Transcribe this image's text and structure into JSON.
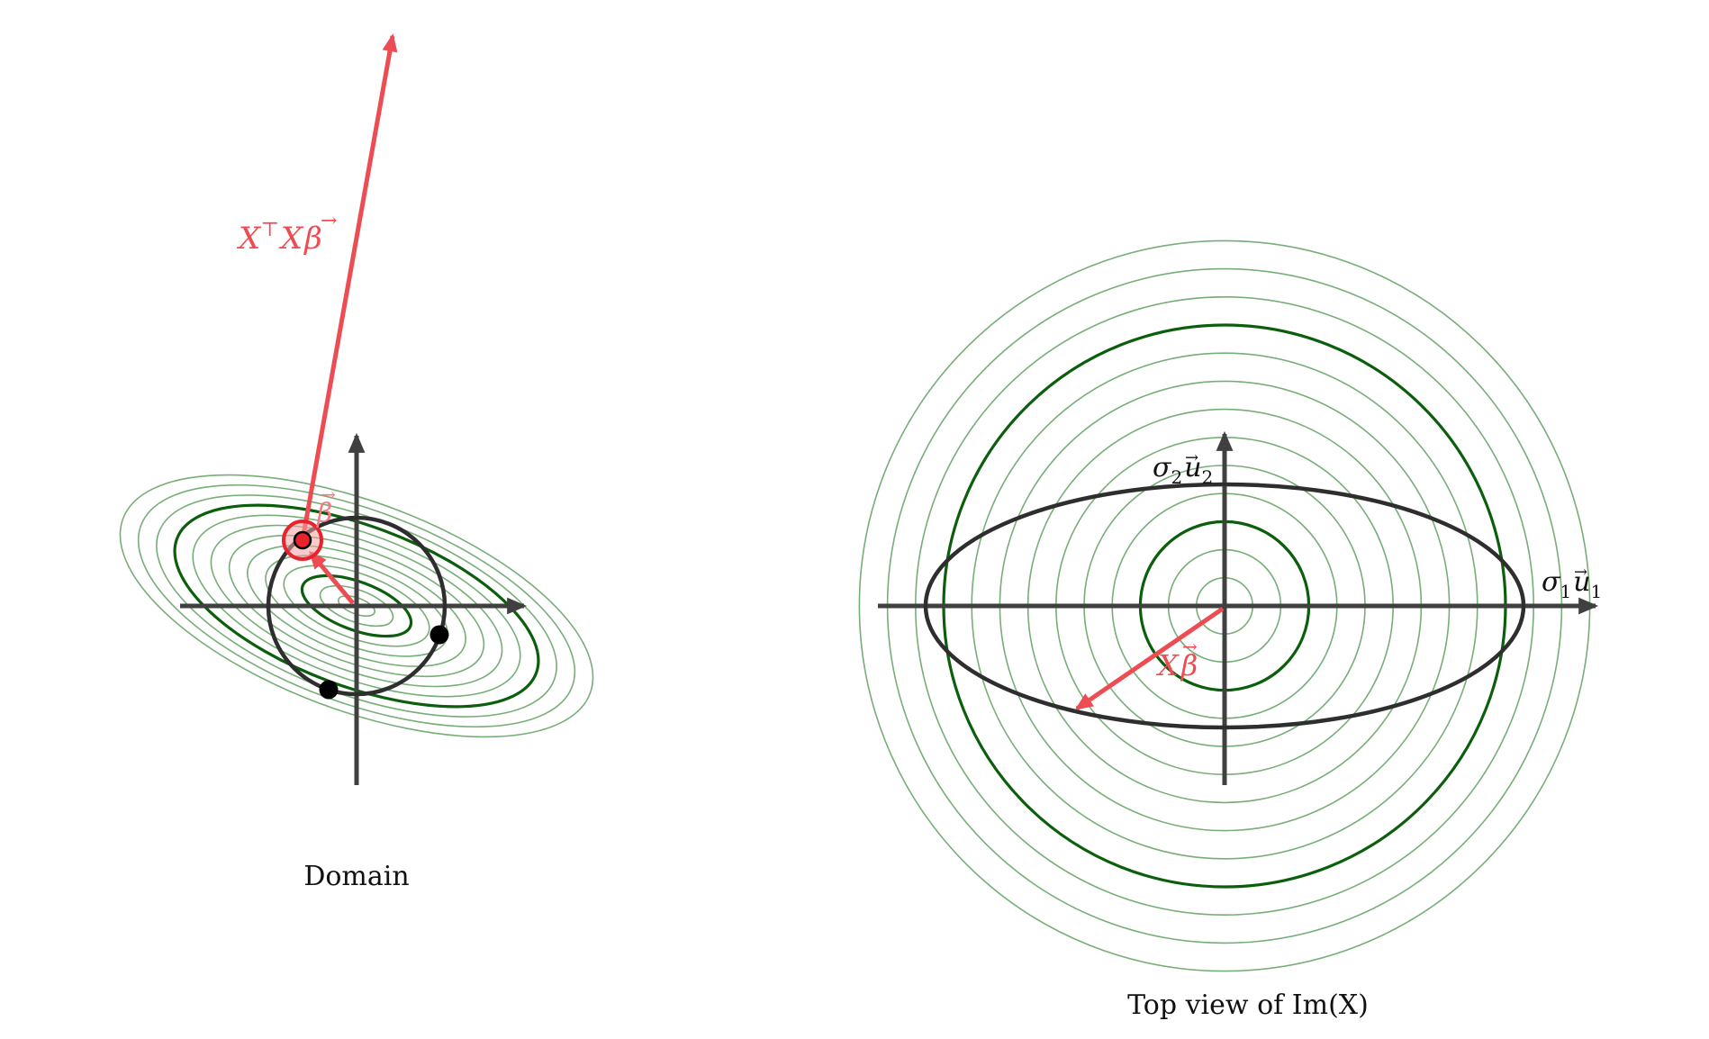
{
  "captions": {
    "left": "Domain",
    "right": "Top view of Im(X)"
  },
  "labels": {
    "xtx_beta": {
      "main": "X",
      "sup": "⊤",
      "tail": "X",
      "vec": "β"
    },
    "beta": {
      "vec": "β"
    },
    "sigma1u1": {
      "sigma": "σ",
      "sub1": "1",
      "u": "u",
      "sub2": "1"
    },
    "sigma2u2": {
      "sigma": "σ",
      "sub1": "2",
      "u": "u",
      "sub2": "2"
    },
    "x_beta": {
      "main": "X",
      "vec": "β"
    },
    "vec_arrow": "→"
  },
  "colors": {
    "axis": "#404040",
    "contour_light": "#5fa05f",
    "contour_dark": "#0b5e0b",
    "curve": "#2e2e2e",
    "vector": "#ee4c53",
    "point": "#000000",
    "highlight": "#e8232e"
  },
  "levels": {
    "contour_count": 13,
    "emphasized_levels": [
      3,
      10
    ]
  }
}
